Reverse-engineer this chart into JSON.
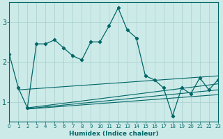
{
  "xlabel": "Humidex (Indice chaleur)",
  "bg_color": "#cceae8",
  "grid_color": "#aed4d2",
  "line_color": "#006666",
  "x_ticks": [
    0,
    1,
    2,
    3,
    4,
    5,
    6,
    7,
    8,
    9,
    10,
    11,
    12,
    13,
    14,
    15,
    16,
    17,
    18,
    19,
    20,
    21,
    22,
    23
  ],
  "y_ticks": [
    1,
    2,
    3
  ],
  "ylim": [
    0.5,
    3.5
  ],
  "xlim": [
    0,
    23
  ],
  "main_x": [
    0,
    1,
    2,
    3,
    4,
    5,
    6,
    7,
    8,
    9,
    10,
    11,
    12,
    13,
    14,
    15,
    16,
    17,
    18,
    19,
    20,
    21,
    22,
    23
  ],
  "main_y": [
    2.2,
    1.35,
    0.85,
    2.45,
    2.45,
    2.55,
    2.35,
    2.15,
    2.05,
    2.5,
    2.5,
    2.9,
    3.35,
    2.8,
    2.6,
    1.65,
    1.55,
    1.35,
    0.65,
    1.35,
    1.2,
    1.6,
    1.3,
    1.55
  ],
  "trend_lines": [
    {
      "x": [
        1,
        23
      ],
      "y": [
        1.3,
        1.65
      ]
    },
    {
      "x": [
        2,
        23
      ],
      "y": [
        0.85,
        1.45
      ]
    },
    {
      "x": [
        2,
        23
      ],
      "y": [
        0.83,
        1.3
      ]
    },
    {
      "x": [
        2,
        23
      ],
      "y": [
        0.82,
        1.18
      ]
    }
  ]
}
